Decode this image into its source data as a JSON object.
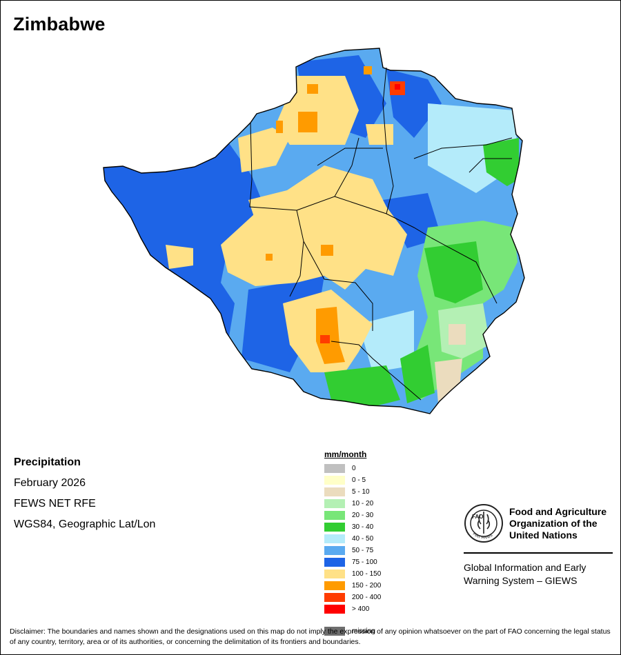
{
  "map": {
    "title": "Zimbabwe",
    "variable": "Precipitation",
    "period": "February 2026",
    "source": "FEWS NET RFE",
    "projection": "WGS84, Geographic Lat/Lon"
  },
  "legend": {
    "title": "mm/month",
    "classes": [
      {
        "label": "0",
        "color": "#c0c0c0"
      },
      {
        "label": "0 - 5",
        "color": "#ffffc8"
      },
      {
        "label": "5 - 10",
        "color": "#ebdcbe"
      },
      {
        "label": "10 - 20",
        "color": "#b4f0b4"
      },
      {
        "label": "20 - 30",
        "color": "#78e678"
      },
      {
        "label": "30 - 40",
        "color": "#32cd32"
      },
      {
        "label": "40 - 50",
        "color": "#b4ebfa"
      },
      {
        "label": "50 - 75",
        "color": "#5aaaf0"
      },
      {
        "label": "75 - 100",
        "color": "#1e64e6"
      },
      {
        "label": "100 - 150",
        "color": "#ffe187"
      },
      {
        "label": "150 - 200",
        "color": "#ff9b00"
      },
      {
        "label": "200 - 400",
        "color": "#ff3c00"
      },
      {
        "label": "> 400",
        "color": "#ff0000"
      }
    ],
    "missing": {
      "label": "missing",
      "color": "#6e6e6e"
    }
  },
  "logo": {
    "org_name": "Food and Agriculture Organization of the United Nations",
    "emblem_letters": "FAO",
    "emblem_motto": "FIAT PANIS"
  },
  "system": {
    "name": "Global Information and Early Warning System – GIEWS"
  },
  "disclaimer": "Disclaimer: The boundaries and names shown and the designations used on this map do not imply the expression of any opinion whatsoever on the part of FAO concerning the legal status of any country, territory, area or of its authorities, or concerning the delimitation of its frontiers and boundaries."
}
